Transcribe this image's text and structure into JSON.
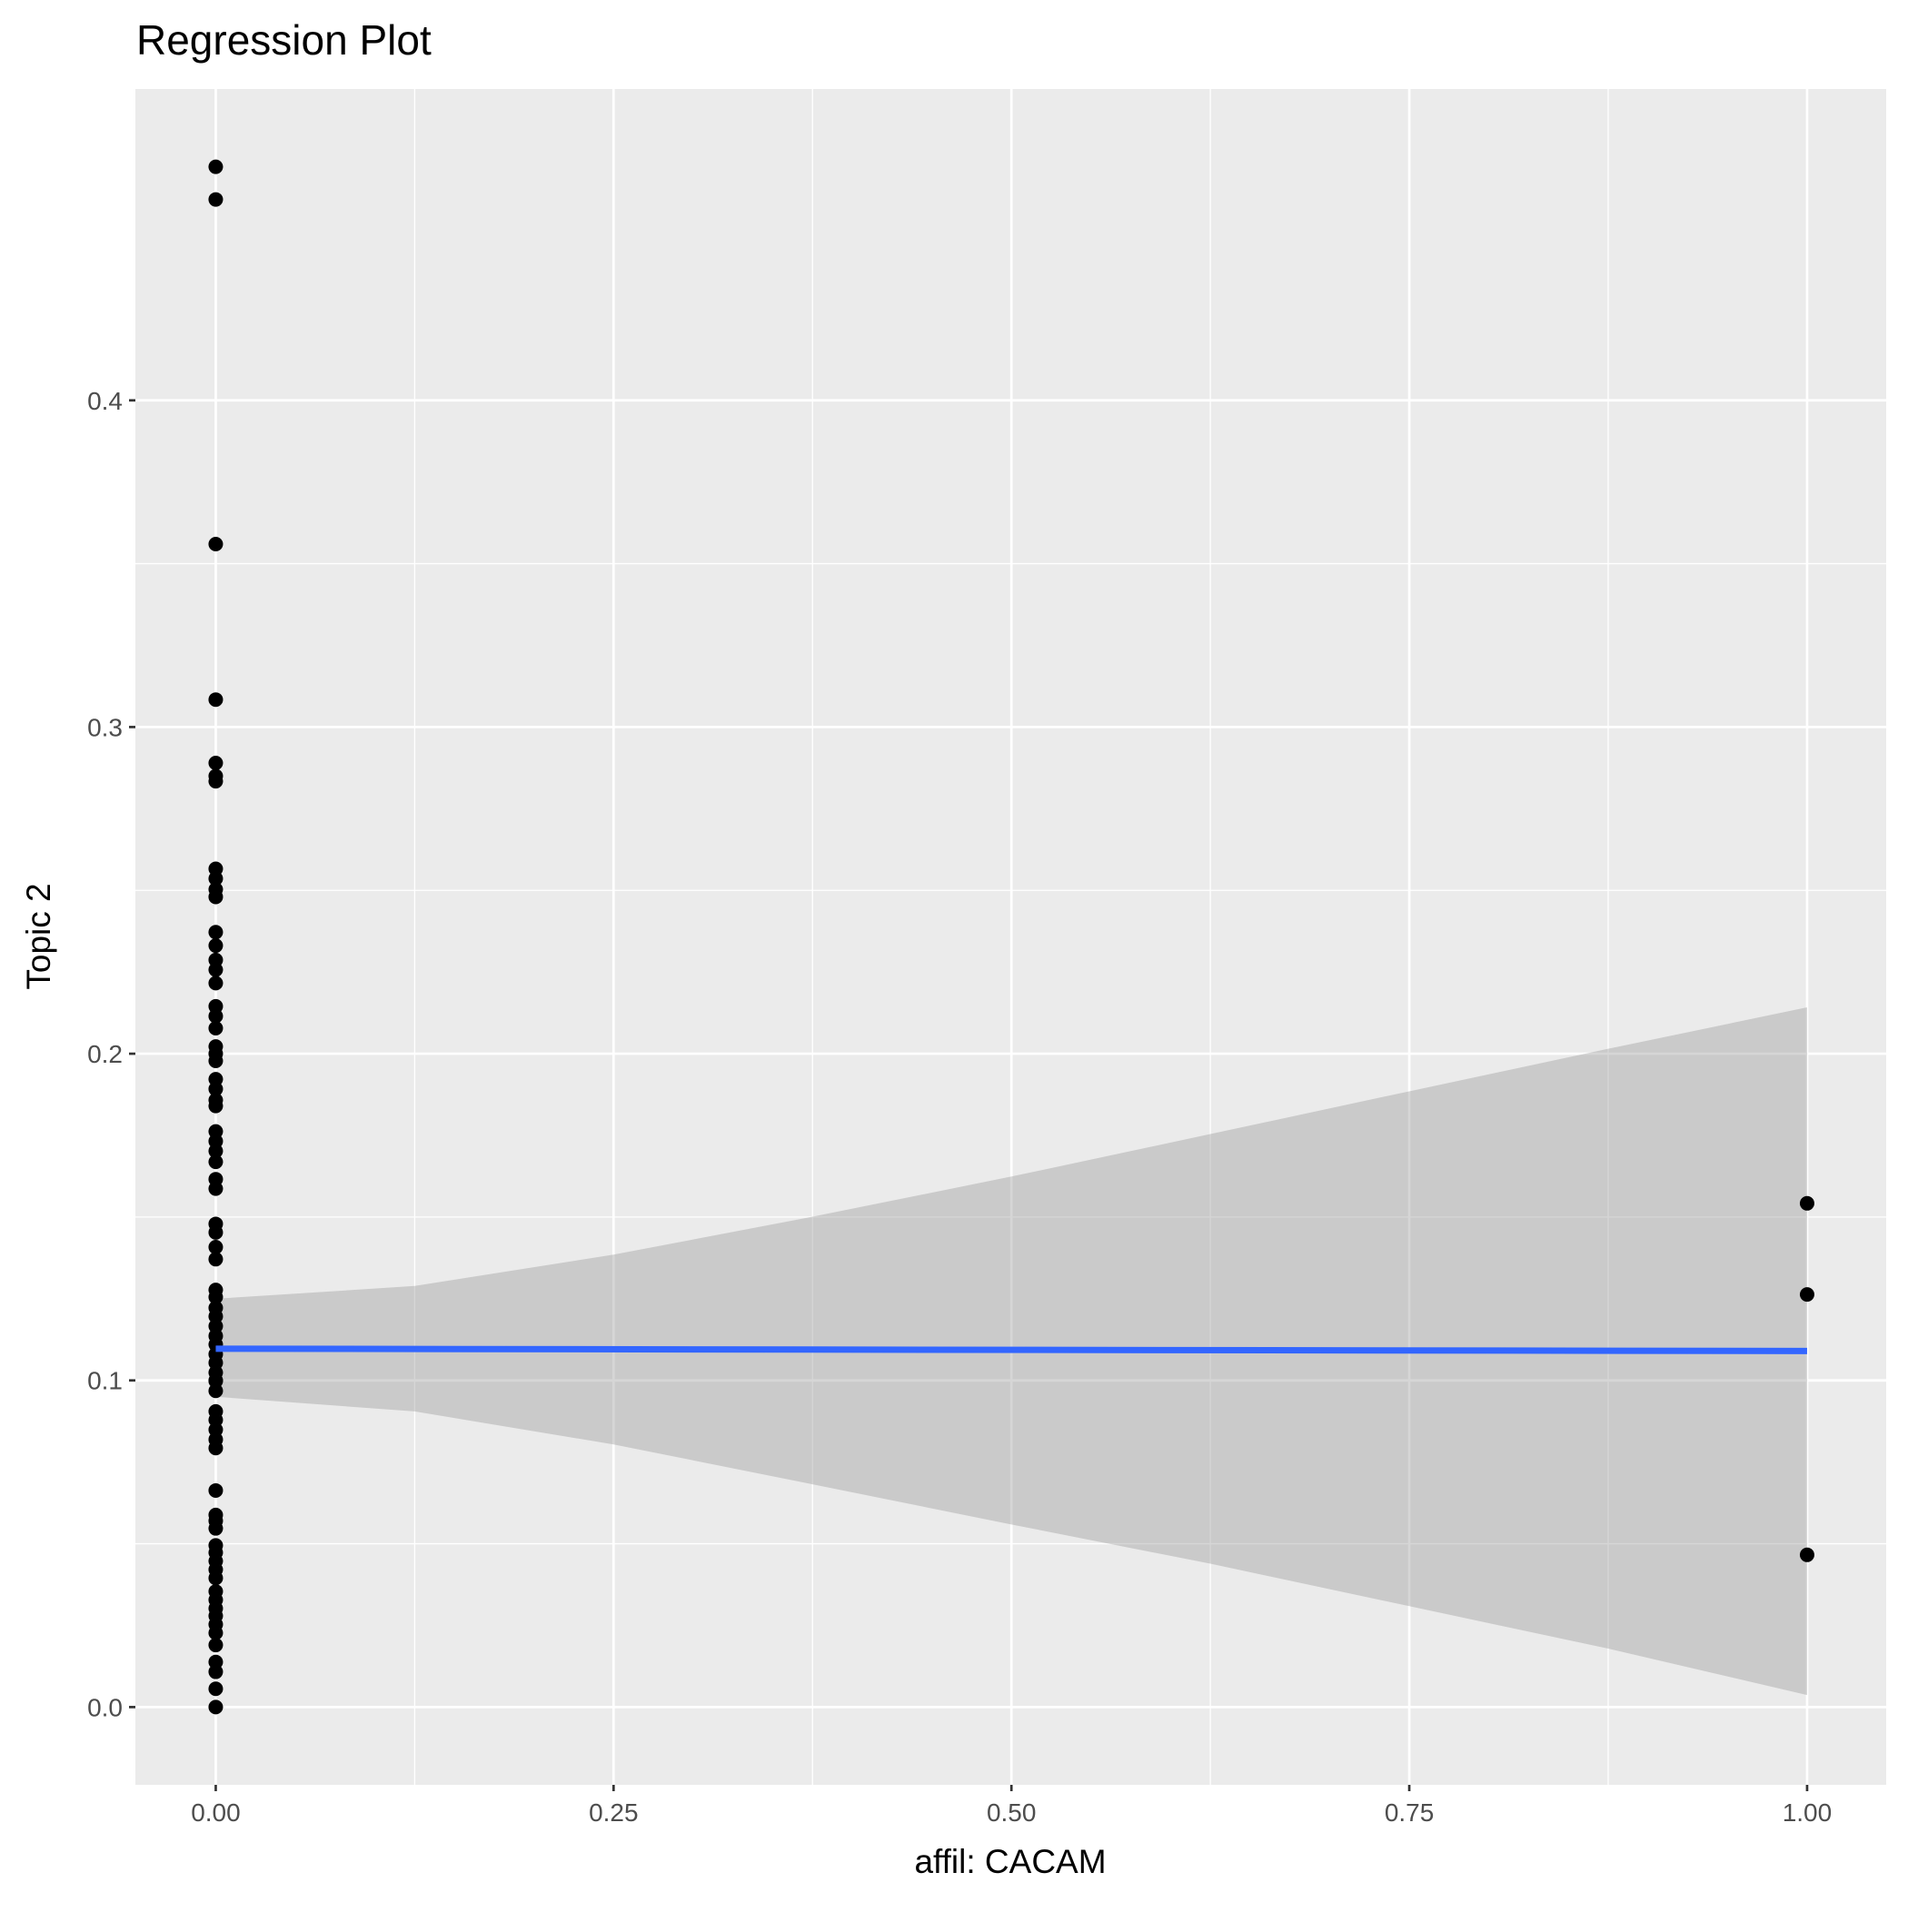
{
  "chart_data": {
    "type": "scatter",
    "title": "Regression Plot",
    "x_label": "affil: CACAM",
    "y_label": "Topic 2",
    "xlim": [
      -0.0505,
      1.0497
    ],
    "ylim": [
      -0.0238,
      0.4953
    ],
    "xticks": [
      {
        "value": 0,
        "label": "0.00"
      },
      {
        "value": 0.25,
        "label": "0.25"
      },
      {
        "value": 0.5,
        "label": "0.50"
      },
      {
        "value": 0.75,
        "label": "0.75"
      },
      {
        "value": 1,
        "label": "1.00"
      }
    ],
    "yticks": [
      {
        "value": 0,
        "label": "0.0"
      },
      0.1,
      0.2,
      0.3,
      0.4
    ],
    "grid": true,
    "series": [
      {
        "name": "points",
        "color": "#000000",
        "x": [
          0,
          0,
          0,
          0,
          0,
          0,
          0,
          0,
          0,
          0,
          0,
          0,
          0,
          0,
          0,
          0,
          0,
          0,
          0,
          0,
          0,
          0,
          0,
          0,
          0,
          0,
          0,
          0,
          0,
          0,
          0,
          0,
          0,
          0,
          0,
          0,
          0,
          0,
          0,
          0,
          0,
          0,
          0,
          0,
          0,
          0,
          0,
          0,
          0,
          0,
          0,
          0,
          0,
          0,
          0,
          0,
          0,
          0,
          0,
          0,
          0,
          0,
          0,
          0,
          0,
          0,
          0,
          0,
          0,
          0,
          0,
          0,
          0,
          0,
          1,
          1,
          1
        ],
        "values": [
          0.4715,
          0.4615,
          0.356,
          0.3084,
          0.289,
          0.285,
          0.2834,
          0.2566,
          0.2536,
          0.2503,
          0.248,
          0.2372,
          0.2331,
          0.2287,
          0.2257,
          0.2216,
          0.2145,
          0.2115,
          0.2078,
          0.2022,
          0.2,
          0.1978,
          0.1922,
          0.1892,
          0.1858,
          0.184,
          0.1762,
          0.1732,
          0.1702,
          0.1669,
          0.1616,
          0.1587,
          0.1479,
          0.1453,
          0.1408,
          0.1371,
          0.1277,
          0.1255,
          0.1222,
          0.1196,
          0.1166,
          0.1136,
          0.111,
          0.108,
          0.1054,
          0.1024,
          0.0998,
          0.0968,
          0.0905,
          0.0879,
          0.0849,
          0.0819,
          0.0793,
          0.0663,
          0.0588,
          0.057,
          0.0547,
          0.0495,
          0.0473,
          0.0447,
          0.0421,
          0.0395,
          0.0354,
          0.0328,
          0.0302,
          0.0279,
          0.0253,
          0.0227,
          0.019,
          0.0138,
          0.0108,
          0.0056,
          0,
          0.1,
          0.1542,
          0.1263,
          0.0466
        ]
      }
    ],
    "fit": {
      "color": "#3366FF",
      "x": [
        0,
        1
      ],
      "values": [
        0.1097,
        0.109
      ]
    },
    "band": {
      "color": "#999999",
      "x": [
        0,
        0.125,
        0.25,
        0.375,
        0.5,
        0.625,
        0.75,
        0.875,
        1
      ],
      "upper": [
        0.125,
        0.1289,
        0.1385,
        0.1501,
        0.1624,
        0.1754,
        0.1885,
        0.2015,
        0.2142
      ],
      "lower": [
        0.095,
        0.0905,
        0.0804,
        0.0682,
        0.0559,
        0.0439,
        0.0309,
        0.0179,
        0.0037
      ]
    }
  }
}
